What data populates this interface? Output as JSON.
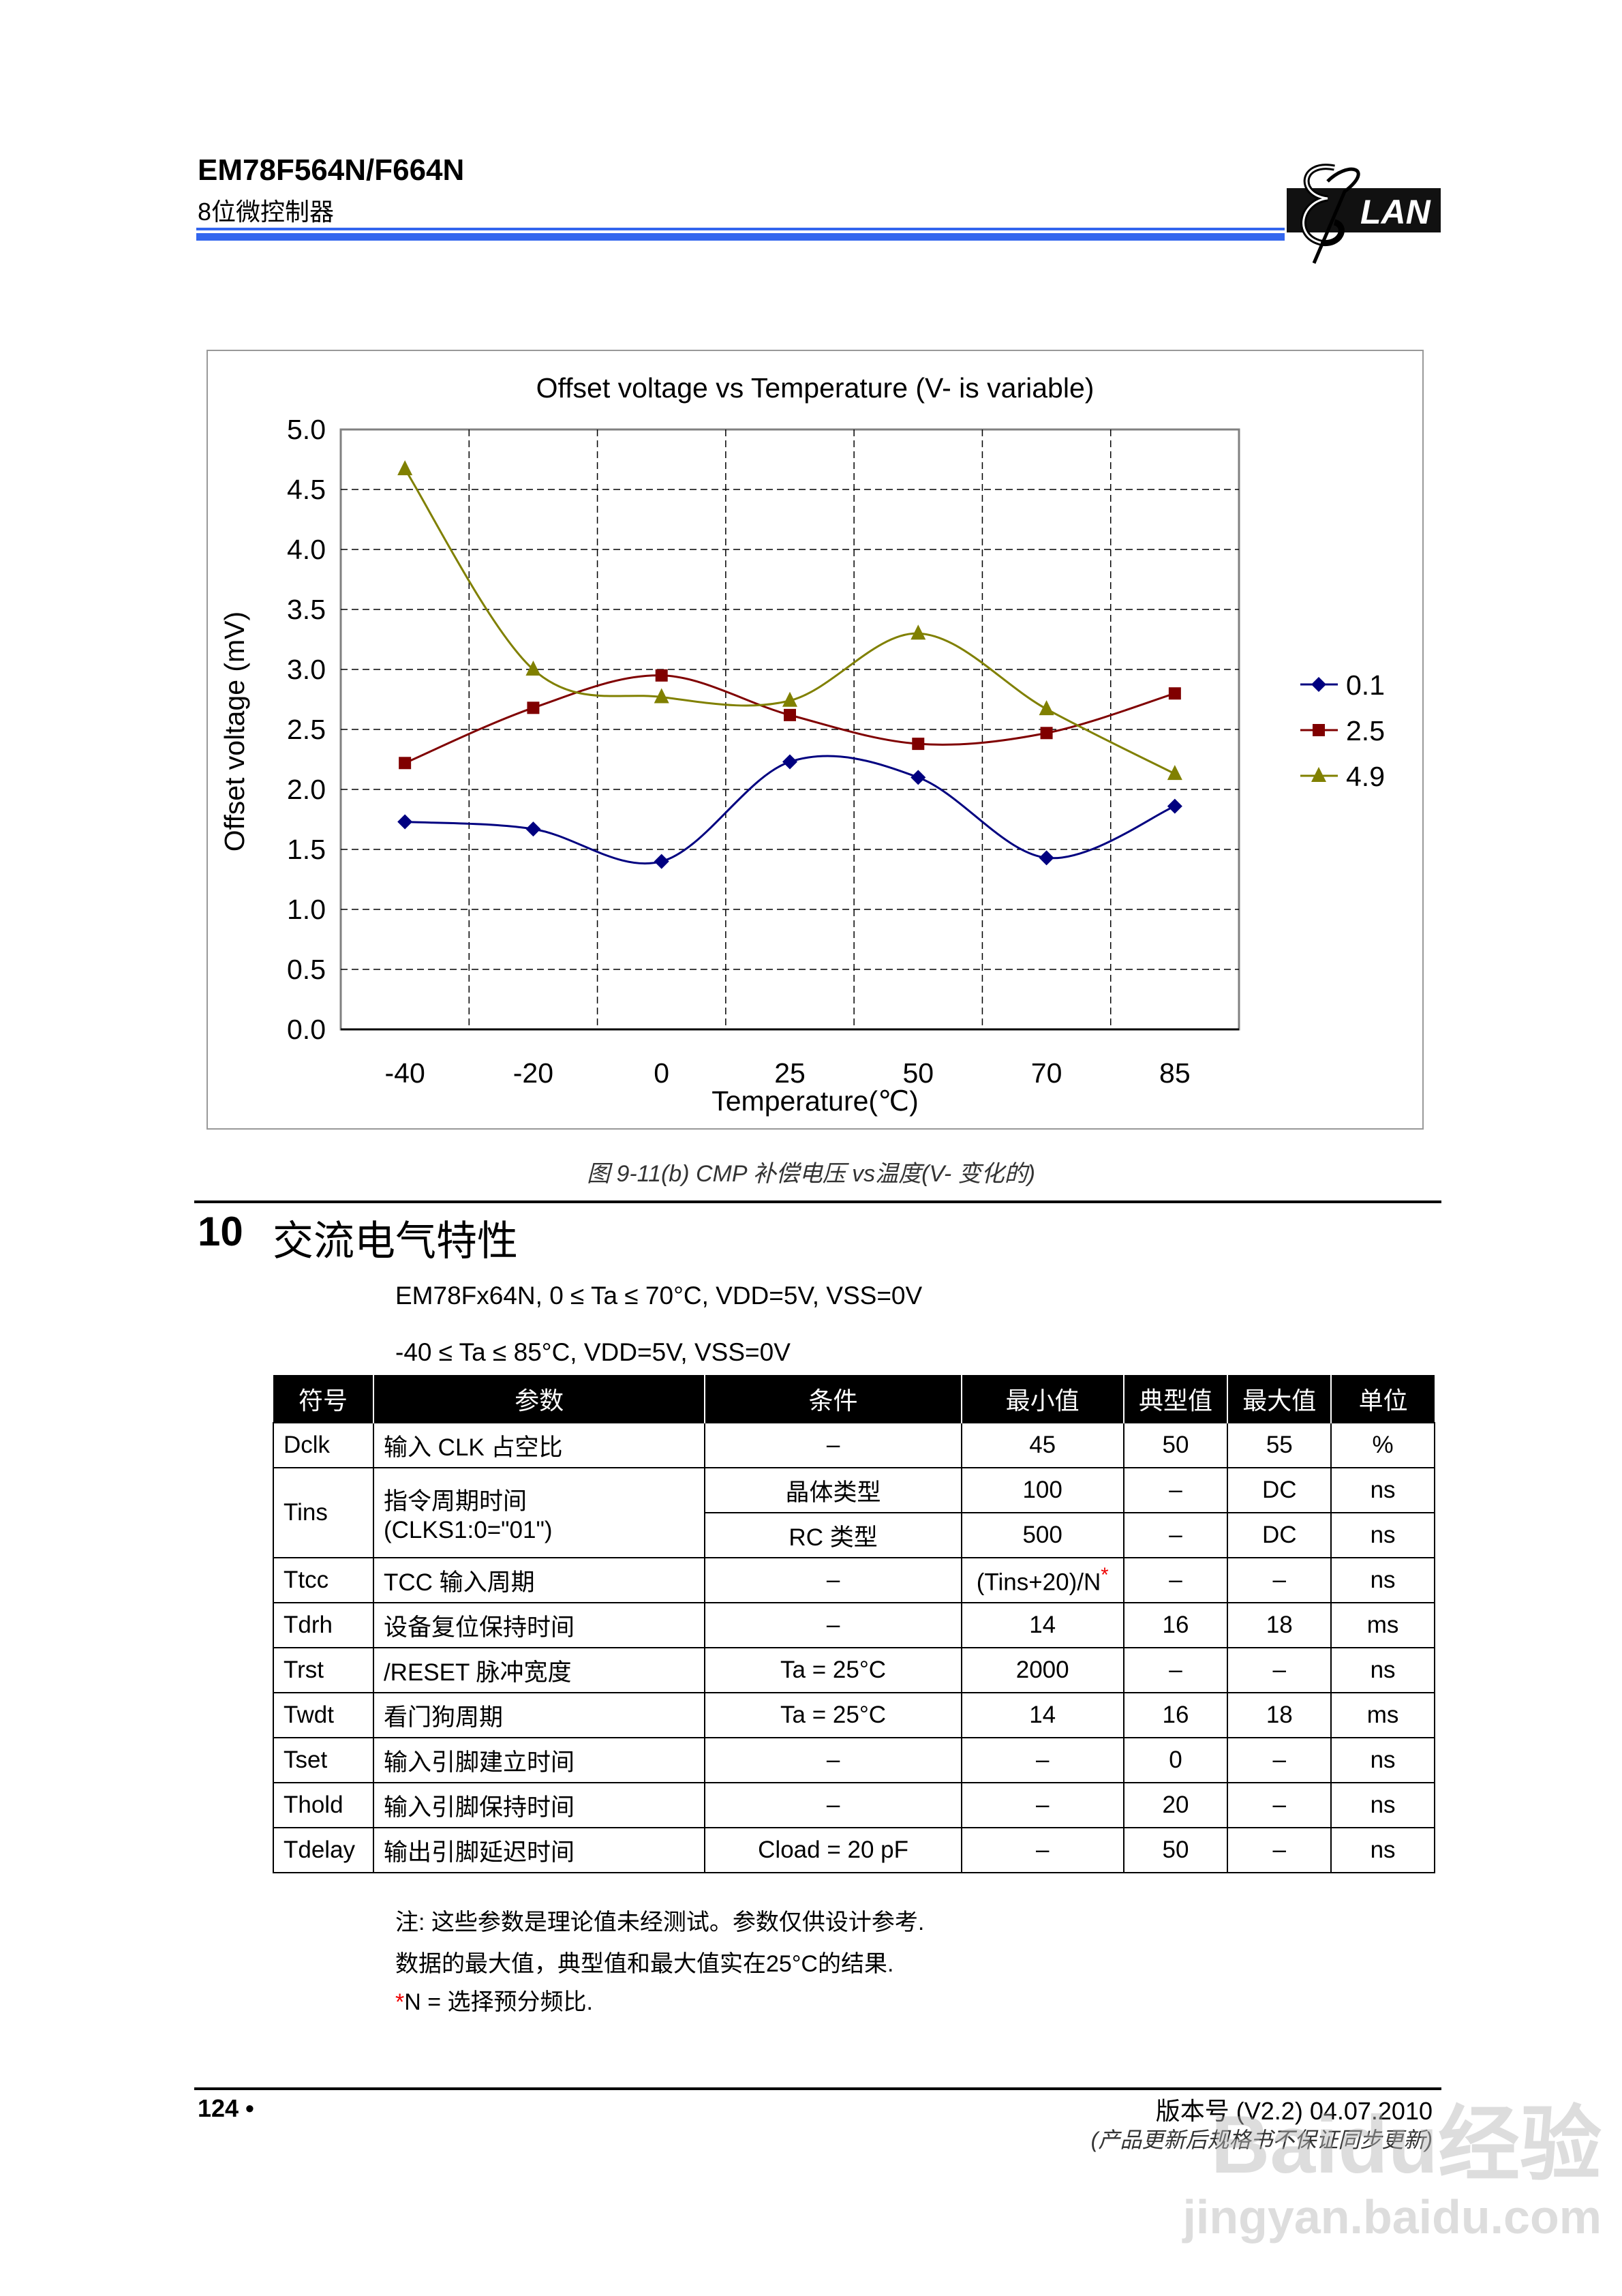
{
  "header": {
    "title": "EM78F564N/F664N",
    "subtitle": "8位微控制器",
    "logo_text": "ELAN",
    "accent_color": "#3366ee"
  },
  "chart_data": {
    "type": "line",
    "title": "Offset voltage vs Temperature (V- is variable)",
    "xlabel": "Temperature(℃)",
    "ylabel": "Offset voltage (mV)",
    "categories": [
      "-40",
      "-20",
      "0",
      "25",
      "50",
      "70",
      "85"
    ],
    "ylim": [
      0,
      5
    ],
    "yticks": [
      "0.0",
      "0.5",
      "1.0",
      "1.5",
      "2.0",
      "2.5",
      "3.0",
      "3.5",
      "4.0",
      "4.5",
      "5.0"
    ],
    "grid": true,
    "smoothed": true,
    "legend_position": "right",
    "series": [
      {
        "name": "0.1",
        "color": "#000080",
        "marker": "diamond",
        "values": [
          1.73,
          1.67,
          1.4,
          2.23,
          2.1,
          1.43,
          1.86
        ]
      },
      {
        "name": "2.5",
        "color": "#800000",
        "marker": "square",
        "values": [
          2.22,
          2.68,
          2.95,
          2.62,
          2.38,
          2.47,
          2.8
        ]
      },
      {
        "name": "4.9",
        "color": "#808000",
        "marker": "triangle",
        "values": [
          4.67,
          3.0,
          2.77,
          2.74,
          3.3,
          2.67,
          2.13
        ]
      }
    ]
  },
  "caption": "图 9-11(b) CMP 补偿电压 vs温度(V- 变化的)",
  "section": {
    "number": "10",
    "title": "交流电气特性",
    "condition1": "EM78Fx64N, 0 ≤ Ta ≤ 70°C, VDD=5V, VSS=0V",
    "condition2": "-40 ≤ Ta ≤ 85°C, VDD=5V, VSS=0V"
  },
  "table": {
    "headers": [
      "符号",
      "参数",
      "条件",
      "最小值",
      "典型值",
      "最大值",
      "单位"
    ],
    "rows": [
      {
        "symbol": "Dclk",
        "param": "输入 CLK 占空比",
        "cond": "–",
        "min": "45",
        "typ": "50",
        "max": "55",
        "unit": "%"
      },
      {
        "symbol": "Tins",
        "param": "指令周期时间",
        "param2": "(CLKS1:0=\"01\")",
        "cond": "晶体类型",
        "min": "100",
        "typ": "–",
        "max": "DC",
        "unit": "ns"
      },
      {
        "cond": "RC 类型",
        "min": "500",
        "typ": "–",
        "max": "DC",
        "unit": "ns"
      },
      {
        "symbol": "Ttcc",
        "param": "TCC 输入周期",
        "cond": "–",
        "min": "(Tins+20)/N",
        "min_mark": "*",
        "typ": "–",
        "max": "–",
        "unit": "ns"
      },
      {
        "symbol": "Tdrh",
        "param": "设备复位保持时间",
        "cond": "–",
        "min": "14",
        "typ": "16",
        "max": "18",
        "unit": "ms"
      },
      {
        "symbol": "Trst",
        "param": "/RESET 脉冲宽度",
        "cond": "Ta = 25°C",
        "min": "2000",
        "typ": "–",
        "max": "–",
        "unit": "ns"
      },
      {
        "symbol": "Twdt",
        "param": "看门狗周期",
        "cond": "Ta = 25°C",
        "min": "14",
        "typ": "16",
        "max": "18",
        "unit": "ms"
      },
      {
        "symbol": "Tset",
        "param": "输入引脚建立时间",
        "cond": "–",
        "min": "–",
        "typ": "0",
        "max": "–",
        "unit": "ns"
      },
      {
        "symbol": "Thold",
        "param": "输入引脚保持时间",
        "cond": "–",
        "min": "–",
        "typ": "20",
        "max": "–",
        "unit": "ns"
      },
      {
        "symbol": "Tdelay",
        "param": "输出引脚延迟时间",
        "cond": "Cload = 20 pF",
        "min": "–",
        "typ": "50",
        "max": "–",
        "unit": "ns"
      }
    ]
  },
  "notes": {
    "line1": "注: 这些参数是理论值未经测试。参数仅供设计参考.",
    "line2": "数据的最大值，典型值和最大值实在25°C的结果.",
    "line3_mark": "*",
    "line3": "N = 选择预分频比."
  },
  "footer": {
    "page": "124 •",
    "version": "版本号 (V2.2) 04.07.2010",
    "version_note": "(产品更新后规格书不保证同步更新)"
  },
  "watermark": {
    "line1": "Baidu经验",
    "line2": "jingyan.baidu.com"
  }
}
